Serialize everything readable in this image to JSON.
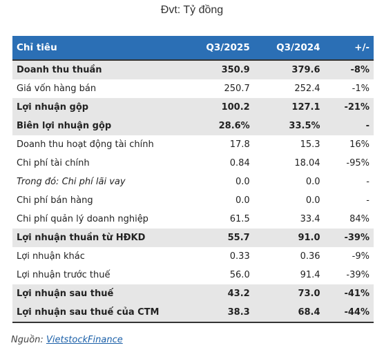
{
  "unit_label": "Đvt: Tỷ đồng",
  "header": [
    "Chỉ tiêu",
    "Q3/2025",
    "Q3/2024",
    "+/-"
  ],
  "rows": [
    {
      "label": "Doanh thu thuần",
      "q3_2025": "350.9",
      "q3_2024": "379.6",
      "change": "-8%",
      "bold": true,
      "shade": true
    },
    {
      "label": "Giá vốn hàng bán",
      "q3_2025": "250.7",
      "q3_2024": "252.4",
      "change": "-1%"
    },
    {
      "label": "Lợi nhuận gộp",
      "q3_2025": "100.2",
      "q3_2024": "127.1",
      "change": "-21%",
      "bold": true,
      "shade": true
    },
    {
      "label": "Biên lợi nhuận gộp",
      "q3_2025": "28.6%",
      "q3_2024": "33.5%",
      "change": "-",
      "bold": true,
      "shade": true
    },
    {
      "label": "Doanh thu hoạt động tài chính",
      "q3_2025": "17.8",
      "q3_2024": "15.3",
      "change": "16%"
    },
    {
      "label": "Chi phí tài chính",
      "q3_2025": "0.84",
      "q3_2024": "18.04",
      "change": "-95%"
    },
    {
      "label": "Trong đó: Chi phí lãi vay",
      "q3_2025": "0.0",
      "q3_2024": "0.0",
      "change": "-",
      "italic": true
    },
    {
      "label": "Chi phí bán hàng",
      "q3_2025": "0.0",
      "q3_2024": "0.0",
      "change": "-"
    },
    {
      "label": "Chi phí quản lý doanh nghiệp",
      "q3_2025": "61.5",
      "q3_2024": "33.4",
      "change": "84%"
    },
    {
      "label": "Lợi nhuận thuần từ HĐKD",
      "q3_2025": "55.7",
      "q3_2024": "91.0",
      "change": "-39%",
      "bold": true,
      "shade": true
    },
    {
      "label": "Lợi nhuận khác",
      "q3_2025": "0.33",
      "q3_2024": "0.36",
      "change": "-9%"
    },
    {
      "label": "Lợi nhuận trước thuế",
      "q3_2025": "56.0",
      "q3_2024": "91.4",
      "change": "-39%"
    },
    {
      "label": "Lợi nhuận sau thuế",
      "q3_2025": "43.2",
      "q3_2024": "73.0",
      "change": "-41%",
      "bold": true,
      "shade": true
    },
    {
      "label": "Lợi nhuận sau thuế của CTM",
      "q3_2025": "38.3",
      "q3_2024": "68.4",
      "change": "-44%",
      "bold": true,
      "shade": true
    }
  ],
  "source_prefix": "Nguồn:",
  "source_link": "VietstockFinance"
}
